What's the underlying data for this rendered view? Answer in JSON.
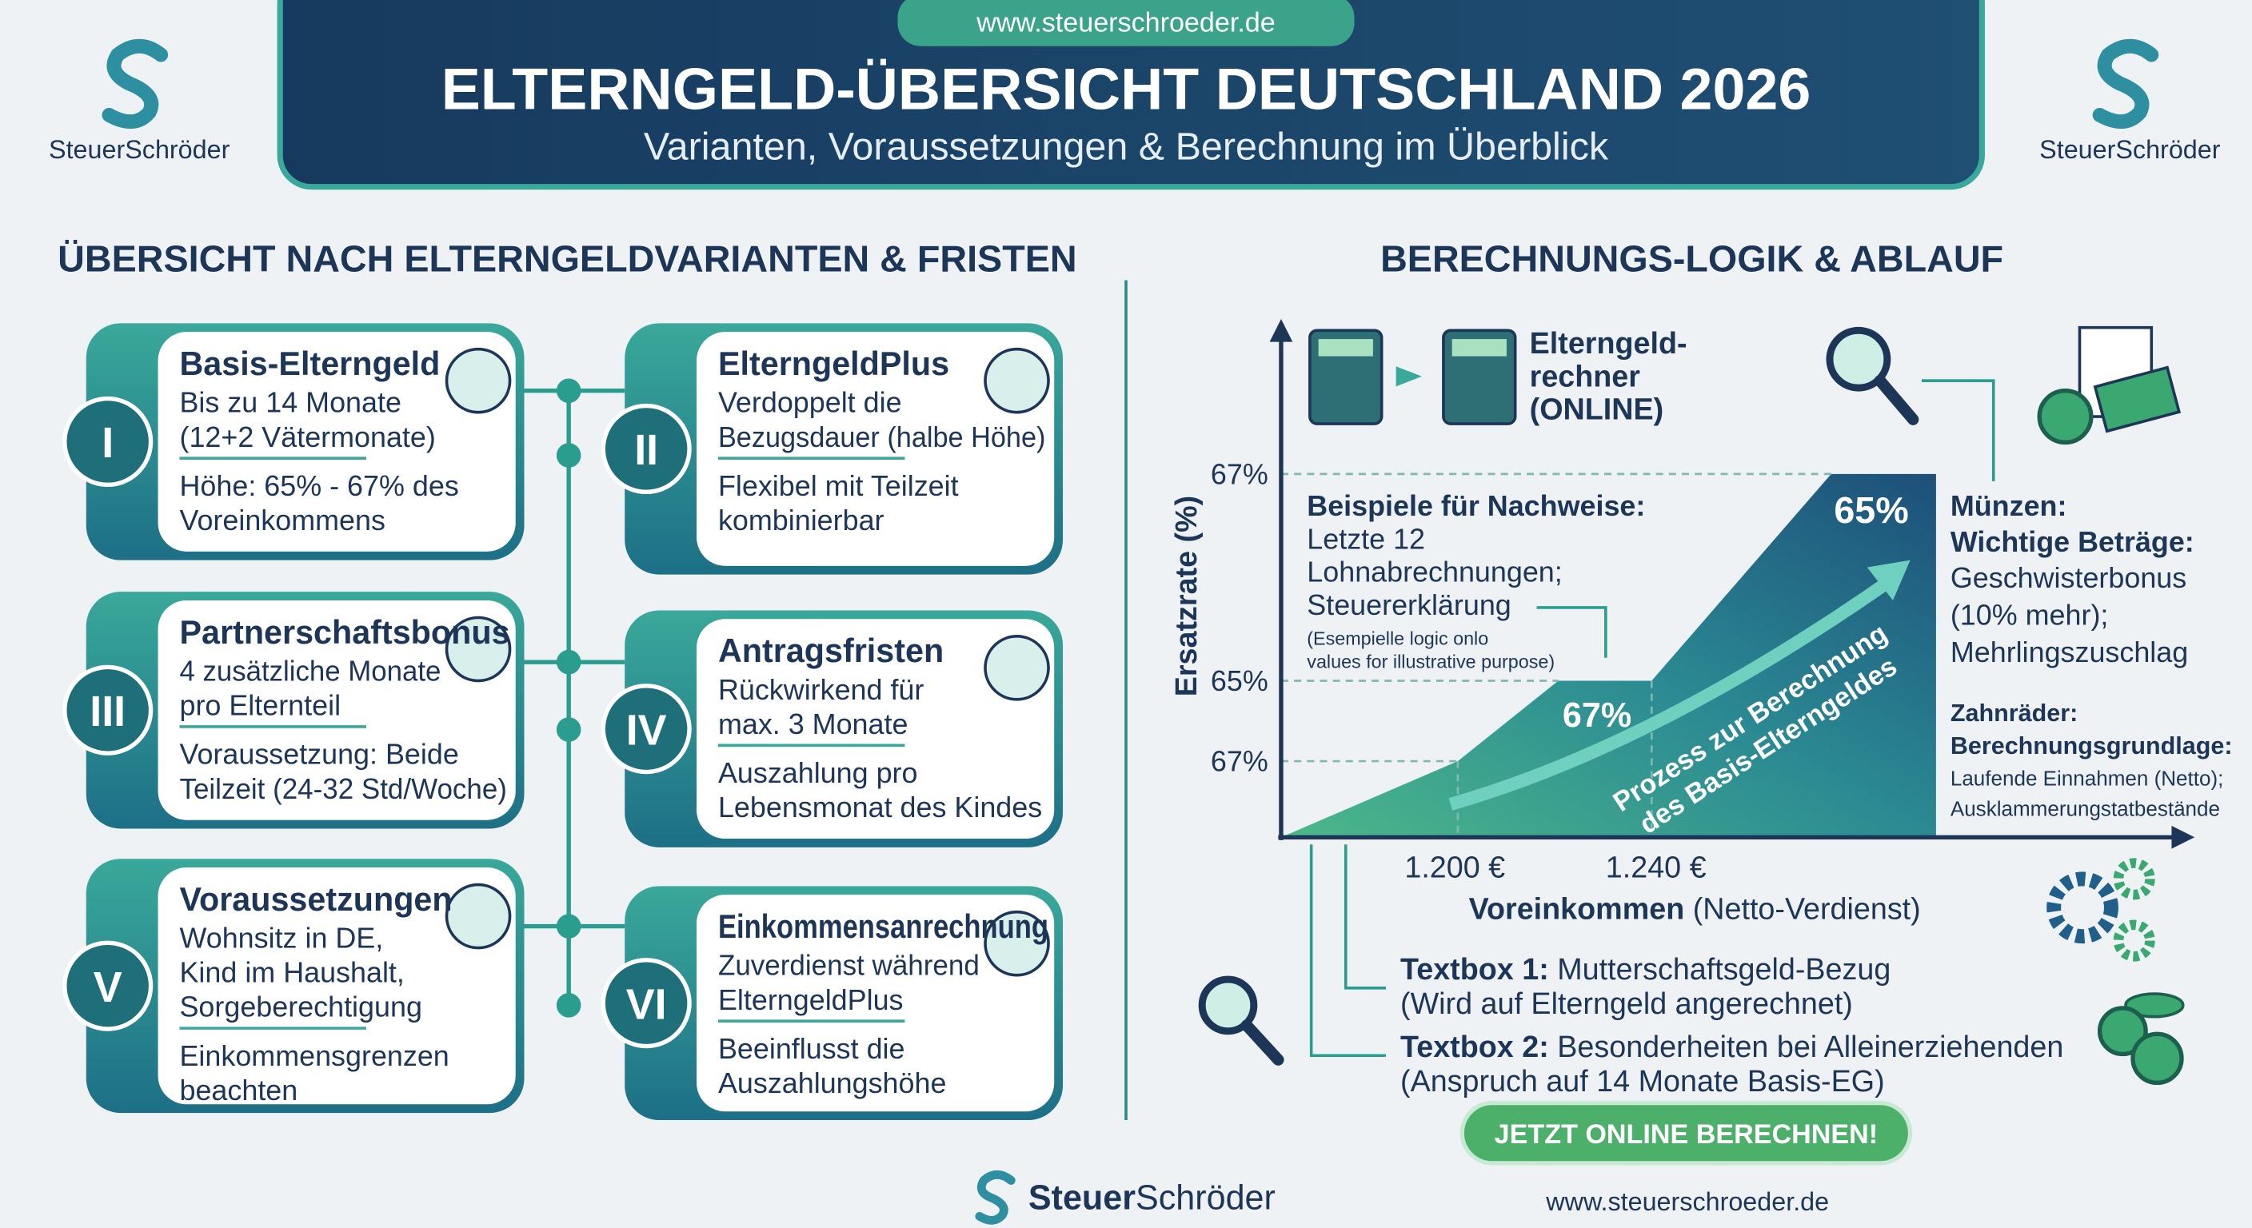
{
  "header": {
    "url": "www.steuerschroeder.de",
    "title": "ELTERNGELD-ÜBERSICHT DEUTSCHLAND 2026",
    "subtitle": "Varianten, Voraussetzungen & Berechnung im Überblick",
    "brand_left": "SteuerSchröder",
    "brand_right": "SteuerSchröder"
  },
  "left": {
    "heading": "ÜBERSICHT NACH ELTERNGELDVARIANTEN & FRISTEN",
    "cards": [
      {
        "numeral": "I",
        "title": "Basis-Elterngeld",
        "lines1": [
          "Bis zu 14 Monate",
          "(12+2 Vätermonate)"
        ],
        "lines2": [
          "Höhe: 65% - 67% des",
          "Voreinkommens"
        ]
      },
      {
        "numeral": "II",
        "title": "ElterngeldPlus",
        "lines1": [
          "Verdoppelt die",
          "Bezugsdauer (halbe Höhe)"
        ],
        "lines2": [
          "Flexibel mit Teilzeit",
          "kombinierbar"
        ]
      },
      {
        "numeral": "III",
        "title": "Partnerschaftsbonus",
        "lines1": [
          "4 zusätzliche Monate",
          "pro Elternteil"
        ],
        "lines2": [
          "Voraussetzung: Beide",
          "Teilzeit (24-32 Std/Woche)"
        ]
      },
      {
        "numeral": "IV",
        "title": "Antragsfristen",
        "lines1": [
          "Rückwirkend für",
          "max. 3 Monate"
        ],
        "lines2": [
          "Auszahlung pro",
          "Lebensmonat des Kindes"
        ]
      },
      {
        "numeral": "V",
        "title": "Voraussetzungen",
        "lines1": [
          "Wohnsitz in DE,",
          "Kind im Haushalt,",
          "Sorgeberechtigung"
        ],
        "lines2": [
          "Einkommensgrenzen",
          "beachten"
        ]
      },
      {
        "numeral": "VI",
        "title": "Einkommensanrechnung",
        "lines1": [
          "Zuverdienst während",
          "ElterngeldPlus"
        ],
        "lines2": [
          "Beeinflusst die",
          "Auszahlungshöhe"
        ]
      }
    ]
  },
  "right": {
    "heading": "BERECHNUNGS-LOGIK & ABLAUF",
    "calculator_label": [
      "Elterngeld-",
      "rechner",
      "(ONLINE)"
    ],
    "y_axis_label": "Ersatzrate (%)",
    "y_labels": [
      "67%",
      "65%",
      "67%"
    ],
    "x_labels": [
      "1.200 €",
      "1.240 €"
    ],
    "x_axis_label_bold": "Voreinkommen",
    "x_axis_label_rest": "(Netto-Verdienst)",
    "area_labels": [
      "67%",
      "65%"
    ],
    "arrow_text": [
      "Prozess zur Berechnung",
      "des Basis-Elterngeldes"
    ],
    "nachweise": {
      "title": "Beispiele für Nachweise:",
      "lines": [
        "Letzte 12",
        "Lohnabrechnungen;",
        "Steuererklärung"
      ],
      "note": [
        "(Esempielle logic onlo",
        "values for illustrative purpose)"
      ]
    },
    "muenzen": {
      "title": "Münzen:",
      "subtitle": "Wichtige Beträge:",
      "lines": [
        "Geschwisterbonus",
        "(10% mehr);",
        "Mehrlingszuschlag"
      ]
    },
    "zahnraeder": {
      "title": "Zahnräder:",
      "subtitle": "Berechnungsgrundlage:",
      "lines": [
        "Laufende Einnahmen (Netto);",
        "Ausklammerungstatbestände"
      ]
    },
    "textbox1": {
      "label": "Textbox 1:",
      "text": "Mutterschaftsgeld-Bezug",
      "sub": "(Wird auf Elterngeld angerechnet)"
    },
    "textbox2": {
      "label": "Textbox 2:",
      "text": "Besonderheiten bei Alleinerziehenden",
      "sub": "(Anspruch auf 14 Monate Basis-EG)"
    },
    "button": "JETZT ONLINE BERECHNEN!"
  },
  "footer": {
    "brand_bold": "Steuer",
    "brand_rest": "Schröder",
    "url": "www.steuerschroeder.de"
  }
}
